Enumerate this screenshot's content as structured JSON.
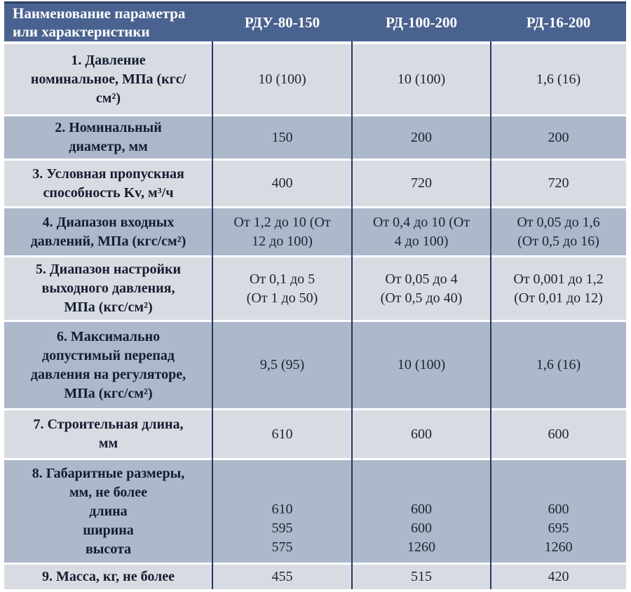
{
  "table": {
    "header": {
      "param": "Наименование параметра\nили характеристики",
      "columns": [
        "РДУ-80-150",
        "РД-100-200",
        "РД-16-200"
      ]
    },
    "rows": [
      {
        "name": "1. Давление\nноминальное, МПа (кгс/\nсм²)",
        "values": [
          "10 (100)",
          "10 (100)",
          "1,6 (16)"
        ]
      },
      {
        "name": "2. Номинальный\nдиаметр, мм",
        "values": [
          "150",
          "200",
          "200"
        ]
      },
      {
        "name": "3. Условная пропускная\nспособность Kv, м³/ч",
        "values": [
          "400",
          "720",
          "720"
        ]
      },
      {
        "name": "4. Диапазон входных\nдавлений, МПа (кгс/см²)",
        "values": [
          "От 1,2 до 10 (От\n12 до 100)",
          "От 0,4 до 10 (От\n4 до 100)",
          "От 0,05 до 1,6\n(От 0,5 до 16)"
        ]
      },
      {
        "name": "5. Диапазон настройки\nвыходного давления,\nМПа (кгс/см²)",
        "values": [
          "От 0,1 до 5\n(От 1 до 50)",
          "От 0,05 до 4\n(От 0,5 до 40)",
          "От 0,001 до 1,2\n(От 0,01 до 12)"
        ]
      },
      {
        "name": "6. Максимально\nдопустимый перепад\nдавления на регуляторе,\nМПа (кгс/см²)",
        "values": [
          "9,5 (95)",
          "10 (100)",
          "1,6 (16)"
        ]
      },
      {
        "name": "7. Строительная длина,\nмм",
        "values": [
          "610",
          "600",
          "600"
        ]
      },
      {
        "name": "8. Габаритные размеры,\nмм, не более",
        "sub": "длина\nширина\nвысота",
        "values": [
          "610\n595\n575",
          "600\n600\n1260",
          "600\n695\n1260"
        ]
      },
      {
        "name": "9. Масса, кг, не более",
        "values": [
          "455",
          "515",
          "420"
        ]
      }
    ],
    "colors": {
      "header_bg": "#4a628f",
      "header_top_edge": "#2c4066",
      "header_text": "#ffffff",
      "row_light": "#d8dce2",
      "row_shaded": "#adb8ca",
      "grid_line": "#1e3a66",
      "body_text": "#1b2433"
    }
  }
}
